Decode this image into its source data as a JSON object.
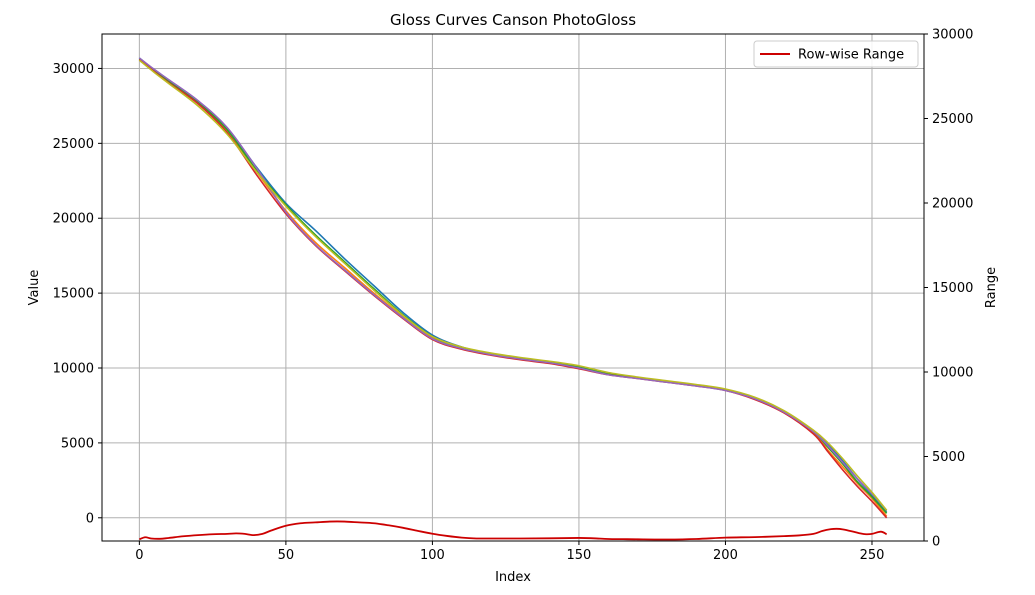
{
  "chart_data": {
    "type": "line",
    "title": "Gloss Curves Canson PhotoGloss",
    "xlabel": "Index",
    "ylabel": "Value",
    "y2label": "Range",
    "xlim": [
      -12.75,
      267.75
    ],
    "ylim": [
      -1550,
      32300
    ],
    "y2lim": [
      0,
      30000
    ],
    "xticks": [
      0,
      50,
      100,
      150,
      200,
      250
    ],
    "yticks": [
      0,
      5000,
      10000,
      15000,
      20000,
      25000,
      30000
    ],
    "y2ticks": [
      0,
      5000,
      10000,
      15000,
      20000,
      25000,
      30000
    ],
    "grid": true,
    "legend": {
      "placement": "top-right",
      "entries": [
        "Row-wise Range"
      ]
    },
    "series": [
      {
        "color": "#1f77b4",
        "axis": "left",
        "x": [
          0,
          5,
          10,
          20,
          30,
          40,
          50,
          60,
          70,
          80,
          90,
          100,
          110,
          120,
          130,
          140,
          150,
          160,
          170,
          180,
          190,
          200,
          210,
          220,
          230,
          235,
          240,
          245,
          250,
          255
        ],
        "y": [
          30700,
          29900,
          29200,
          27800,
          26000,
          23400,
          21000,
          19200,
          17300,
          15500,
          13700,
          12200,
          11400,
          10950,
          10650,
          10400,
          10050,
          9600,
          9350,
          9100,
          8850,
          8550,
          8000,
          7100,
          5800,
          4900,
          3800,
          2600,
          1500,
          400
        ]
      },
      {
        "color": "#ff7f0e",
        "axis": "left",
        "x": [
          0,
          5,
          10,
          20,
          30,
          40,
          50,
          60,
          70,
          80,
          90,
          100,
          110,
          120,
          130,
          140,
          150,
          160,
          170,
          180,
          190,
          200,
          210,
          220,
          230,
          235,
          240,
          245,
          250,
          255
        ],
        "y": [
          30600,
          29800,
          29100,
          27700,
          25800,
          23100,
          20500,
          18400,
          16700,
          15000,
          13400,
          12000,
          11300,
          10900,
          10600,
          10350,
          10000,
          9600,
          9350,
          9100,
          8850,
          8550,
          7950,
          7050,
          5700,
          4500,
          3400,
          2300,
          1300,
          100
        ]
      },
      {
        "color": "#2ca02c",
        "axis": "left",
        "x": [
          0,
          5,
          10,
          20,
          30,
          40,
          50,
          60,
          70,
          80,
          90,
          100,
          110,
          120,
          130,
          140,
          150,
          160,
          170,
          180,
          190,
          200,
          210,
          220,
          230,
          235,
          240,
          245,
          250,
          255
        ],
        "y": [
          30650,
          29850,
          29150,
          27750,
          25900,
          23200,
          20900,
          18900,
          17100,
          15300,
          13550,
          12100,
          11350,
          10950,
          10650,
          10400,
          10050,
          9600,
          9350,
          9100,
          8850,
          8550,
          7950,
          7050,
          5750,
          4700,
          3600,
          2400,
          1400,
          300
        ]
      },
      {
        "color": "#d62728",
        "axis": "left",
        "x": [
          0,
          5,
          10,
          20,
          30,
          40,
          50,
          60,
          70,
          80,
          90,
          100,
          110,
          120,
          130,
          140,
          150,
          160,
          170,
          180,
          190,
          200,
          210,
          220,
          230,
          235,
          240,
          245,
          250,
          255
        ],
        "y": [
          30600,
          29800,
          29050,
          27650,
          25700,
          22900,
          20300,
          18200,
          16500,
          14850,
          13300,
          11900,
          11250,
          10850,
          10550,
          10300,
          9950,
          9550,
          9300,
          9050,
          8800,
          8500,
          7900,
          7000,
          5600,
          4400,
          3200,
          2100,
          1100,
          0
        ]
      },
      {
        "color": "#9467bd",
        "axis": "left",
        "x": [
          0,
          5,
          10,
          20,
          30,
          40,
          50,
          60,
          70,
          80,
          90,
          100,
          110,
          120,
          130,
          140,
          150,
          160,
          170,
          180,
          190,
          200,
          210,
          220,
          230,
          235,
          240,
          245,
          250,
          255
        ],
        "y": [
          30700,
          29950,
          29250,
          27850,
          26050,
          23350,
          20400,
          18250,
          16550,
          14900,
          13350,
          11950,
          11300,
          10900,
          10600,
          10350,
          10000,
          9550,
          9300,
          9050,
          8800,
          8500,
          7950,
          7050,
          5750,
          4800,
          3700,
          2600,
          1600,
          500
        ]
      },
      {
        "color": "#bcbd22",
        "axis": "left",
        "x": [
          0,
          5,
          10,
          20,
          30,
          40,
          50,
          60,
          70,
          80,
          90,
          100,
          110,
          120,
          130,
          140,
          150,
          160,
          170,
          180,
          190,
          200,
          210,
          220,
          230,
          235,
          240,
          245,
          250,
          255
        ],
        "y": [
          30550,
          29750,
          29000,
          27500,
          25600,
          23100,
          20800,
          18800,
          17000,
          15200,
          13500,
          12100,
          11400,
          11000,
          10700,
          10450,
          10150,
          9700,
          9400,
          9150,
          8900,
          8600,
          8050,
          7150,
          5850,
          5000,
          3950,
          2800,
          1700,
          500
        ]
      },
      {
        "name": "Row-wise Range",
        "color": "#cc0000",
        "axis": "right",
        "x": [
          0,
          2,
          4,
          7,
          10,
          15,
          20,
          25,
          30,
          33,
          36,
          39,
          42,
          45,
          50,
          55,
          60,
          65,
          70,
          75,
          80,
          85,
          90,
          95,
          100,
          105,
          110,
          115,
          120,
          130,
          140,
          150,
          155,
          160,
          165,
          170,
          180,
          190,
          200,
          210,
          220,
          225,
          230,
          233,
          236,
          238,
          240,
          243,
          246,
          248,
          250,
          253,
          255
        ],
        "y": [
          100,
          220,
          150,
          130,
          180,
          280,
          350,
          400,
          420,
          450,
          420,
          350,
          420,
          620,
          900,
          1050,
          1100,
          1150,
          1150,
          1100,
          1050,
          930,
          780,
          600,
          430,
          300,
          200,
          150,
          150,
          150,
          160,
          180,
          160,
          120,
          110,
          100,
          90,
          120,
          200,
          230,
          290,
          330,
          420,
          590,
          700,
          720,
          690,
          580,
          450,
          400,
          420,
          550,
          400
        ]
      }
    ]
  }
}
